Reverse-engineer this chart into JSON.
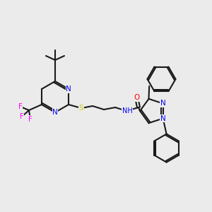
{
  "background_color": "#ebebeb",
  "bond_color": "#1a1a1a",
  "bond_lw": 1.5,
  "atom_colors": {
    "N": "#0000ff",
    "O": "#ff0000",
    "S": "#cccc00",
    "F": "#ff00ff",
    "C": "#1a1a1a"
  },
  "font_size": 7.5,
  "ring_font_size": 7.0
}
